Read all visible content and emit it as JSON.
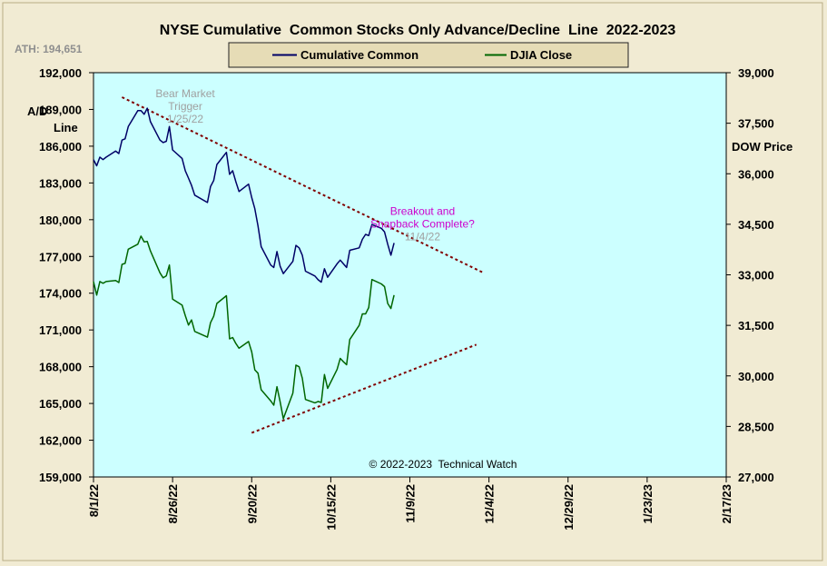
{
  "chart_data": {
    "type": "line",
    "title": "NYSE Cumulative  Common Stocks Only Advance/Decline  Line  2022-2023",
    "ath_label": "ATH: 194,651",
    "left_axis_label_line1": "A/D",
    "left_axis_label_line2": "Line",
    "right_axis_label": "DOW Price",
    "copyright": "© 2022-2023  Technical Watch",
    "colors": {
      "plot_bg": "#ccffff",
      "outer_bg": "#f1ebd3",
      "legend_bg": "#e6dcb6",
      "cumulative": "#000066",
      "djia": "#006600",
      "trendline": "#800000",
      "breakout_text": "#cc00cc",
      "annotation_gray": "#a0a0a0"
    },
    "legend": [
      {
        "name": "Cumulative Common",
        "color": "#000066"
      },
      {
        "name": "DJIA Close",
        "color": "#006600"
      }
    ],
    "y_left": {
      "min": 159000,
      "max": 192000,
      "ticks": [
        159000,
        162000,
        165000,
        168000,
        171000,
        174000,
        177000,
        180000,
        183000,
        186000,
        189000,
        192000
      ],
      "tick_labels": [
        "159,000",
        "162,000",
        "165,000",
        "168,000",
        "171,000",
        "174,000",
        "177,000",
        "180,000",
        "183,000",
        "186,000",
        "189,000",
        "192,000"
      ]
    },
    "y_right": {
      "min": 27000,
      "max": 39000,
      "ticks": [
        27000,
        28500,
        30000,
        31500,
        33000,
        34500,
        36000,
        37500,
        39000
      ],
      "tick_labels": [
        "27,000",
        "28,500",
        "30,000",
        "31,500",
        "33,000",
        "34,500",
        "36,000",
        "37,500",
        "39,000"
      ]
    },
    "x_axis": {
      "start": "2022-08-01",
      "end": "2023-02-17",
      "tick_dates": [
        "2022-08-01",
        "2022-08-26",
        "2022-09-20",
        "2022-10-15",
        "2022-11-09",
        "2022-12-04",
        "2022-12-29",
        "2023-01-23",
        "2023-02-17"
      ],
      "tick_labels": [
        "8/1/22",
        "8/26/22",
        "9/20/22",
        "10/15/22",
        "11/9/22",
        "12/4/22",
        "12/29/22",
        "1/23/23",
        "2/17/23"
      ]
    },
    "annotations": [
      {
        "id": "bear",
        "lines": [
          "Bear Market",
          "Trigger",
          "1/25/22"
        ],
        "anchor_date": "2022-08-30",
        "anchor_value": 190000
      },
      {
        "id": "breakout",
        "lines": [
          "Breakout and",
          "Snapback Complete?",
          "11/4/22"
        ],
        "anchor_date": "2022-11-13",
        "anchor_value": 180400
      }
    ],
    "trendlines": [
      {
        "name": "A/D resistance",
        "start_date": "2022-08-10",
        "start_value": 190000,
        "end_date": "2022-12-02",
        "end_value": 175700
      },
      {
        "name": "DJIA support",
        "start_date": "2022-09-20",
        "start_value": 162600,
        "end_date": "2022-11-30",
        "end_value": 169800
      }
    ],
    "series": [
      {
        "name": "Cumulative Common",
        "axis": "left",
        "color": "#000066",
        "points": [
          [
            "2022-08-01",
            184900
          ],
          [
            "2022-08-02",
            184400
          ],
          [
            "2022-08-03",
            185100
          ],
          [
            "2022-08-04",
            184900
          ],
          [
            "2022-08-05",
            185100
          ],
          [
            "2022-08-08",
            185600
          ],
          [
            "2022-08-09",
            185400
          ],
          [
            "2022-08-10",
            186500
          ],
          [
            "2022-08-11",
            186600
          ],
          [
            "2022-08-12",
            187600
          ],
          [
            "2022-08-15",
            188900
          ],
          [
            "2022-08-16",
            188900
          ],
          [
            "2022-08-17",
            188600
          ],
          [
            "2022-08-18",
            189100
          ],
          [
            "2022-08-19",
            188000
          ],
          [
            "2022-08-22",
            186500
          ],
          [
            "2022-08-23",
            186300
          ],
          [
            "2022-08-24",
            186400
          ],
          [
            "2022-08-25",
            187600
          ],
          [
            "2022-08-26",
            185700
          ],
          [
            "2022-08-29",
            185000
          ],
          [
            "2022-08-30",
            184000
          ],
          [
            "2022-08-31",
            183400
          ],
          [
            "2022-09-01",
            182800
          ],
          [
            "2022-09-02",
            182000
          ],
          [
            "2022-09-06",
            181400
          ],
          [
            "2022-09-07",
            182700
          ],
          [
            "2022-09-08",
            183200
          ],
          [
            "2022-09-09",
            184500
          ],
          [
            "2022-09-12",
            185500
          ],
          [
            "2022-09-13",
            183700
          ],
          [
            "2022-09-14",
            184000
          ],
          [
            "2022-09-15",
            183100
          ],
          [
            "2022-09-16",
            182300
          ],
          [
            "2022-09-19",
            182900
          ],
          [
            "2022-09-20",
            181800
          ],
          [
            "2022-09-21",
            180900
          ],
          [
            "2022-09-22",
            179500
          ],
          [
            "2022-09-23",
            177800
          ],
          [
            "2022-09-26",
            176300
          ],
          [
            "2022-09-27",
            176100
          ],
          [
            "2022-09-28",
            177400
          ],
          [
            "2022-09-29",
            176200
          ],
          [
            "2022-09-30",
            175600
          ],
          [
            "2022-10-03",
            176600
          ],
          [
            "2022-10-04",
            177900
          ],
          [
            "2022-10-05",
            177700
          ],
          [
            "2022-10-06",
            177100
          ],
          [
            "2022-10-07",
            175800
          ],
          [
            "2022-10-10",
            175400
          ],
          [
            "2022-10-11",
            175100
          ],
          [
            "2022-10-12",
            174900
          ],
          [
            "2022-10-13",
            176000
          ],
          [
            "2022-10-14",
            175300
          ],
          [
            "2022-10-17",
            176400
          ],
          [
            "2022-10-18",
            176700
          ],
          [
            "2022-10-19",
            176400
          ],
          [
            "2022-10-20",
            176100
          ],
          [
            "2022-10-21",
            177500
          ],
          [
            "2022-10-24",
            177700
          ],
          [
            "2022-10-25",
            178400
          ],
          [
            "2022-10-26",
            178800
          ],
          [
            "2022-10-27",
            178700
          ],
          [
            "2022-10-28",
            179600
          ],
          [
            "2022-10-31",
            179300
          ],
          [
            "2022-11-01",
            179000
          ],
          [
            "2022-11-02",
            178000
          ],
          [
            "2022-11-03",
            177100
          ],
          [
            "2022-11-04",
            178100
          ]
        ]
      },
      {
        "name": "DJIA Close",
        "axis": "right",
        "color": "#006600",
        "points": [
          [
            "2022-08-01",
            32800
          ],
          [
            "2022-08-02",
            32400
          ],
          [
            "2022-08-03",
            32800
          ],
          [
            "2022-08-04",
            32750
          ],
          [
            "2022-08-05",
            32800
          ],
          [
            "2022-08-08",
            32830
          ],
          [
            "2022-08-09",
            32770
          ],
          [
            "2022-08-10",
            33310
          ],
          [
            "2022-08-11",
            33340
          ],
          [
            "2022-08-12",
            33760
          ],
          [
            "2022-08-15",
            33910
          ],
          [
            "2022-08-16",
            34150
          ],
          [
            "2022-08-17",
            33980
          ],
          [
            "2022-08-18",
            33990
          ],
          [
            "2022-08-19",
            33710
          ],
          [
            "2022-08-22",
            33060
          ],
          [
            "2022-08-23",
            32910
          ],
          [
            "2022-08-24",
            32970
          ],
          [
            "2022-08-25",
            33290
          ],
          [
            "2022-08-26",
            32280
          ],
          [
            "2022-08-29",
            32100
          ],
          [
            "2022-08-30",
            31790
          ],
          [
            "2022-08-31",
            31510
          ],
          [
            "2022-09-01",
            31660
          ],
          [
            "2022-09-02",
            31320
          ],
          [
            "2022-09-06",
            31150
          ],
          [
            "2022-09-07",
            31580
          ],
          [
            "2022-09-08",
            31770
          ],
          [
            "2022-09-09",
            32150
          ],
          [
            "2022-09-12",
            32380
          ],
          [
            "2022-09-13",
            31100
          ],
          [
            "2022-09-14",
            31140
          ],
          [
            "2022-09-15",
            30960
          ],
          [
            "2022-09-16",
            30820
          ],
          [
            "2022-09-19",
            31020
          ],
          [
            "2022-09-20",
            30710
          ],
          [
            "2022-09-21",
            30180
          ],
          [
            "2022-09-22",
            30080
          ],
          [
            "2022-09-23",
            29590
          ],
          [
            "2022-09-26",
            29260
          ],
          [
            "2022-09-27",
            29130
          ],
          [
            "2022-09-28",
            29680
          ],
          [
            "2022-09-29",
            29230
          ],
          [
            "2022-09-30",
            28730
          ],
          [
            "2022-10-03",
            29490
          ],
          [
            "2022-10-04",
            30320
          ],
          [
            "2022-10-05",
            30270
          ],
          [
            "2022-10-06",
            29930
          ],
          [
            "2022-10-07",
            29300
          ],
          [
            "2022-10-10",
            29200
          ],
          [
            "2022-10-11",
            29240
          ],
          [
            "2022-10-12",
            29210
          ],
          [
            "2022-10-13",
            30040
          ],
          [
            "2022-10-14",
            29630
          ],
          [
            "2022-10-17",
            30190
          ],
          [
            "2022-10-18",
            30520
          ],
          [
            "2022-10-19",
            30420
          ],
          [
            "2022-10-20",
            30330
          ],
          [
            "2022-10-21",
            31080
          ],
          [
            "2022-10-24",
            31500
          ],
          [
            "2022-10-25",
            31840
          ],
          [
            "2022-10-26",
            31840
          ],
          [
            "2022-10-27",
            32030
          ],
          [
            "2022-10-28",
            32860
          ],
          [
            "2022-10-31",
            32730
          ],
          [
            "2022-11-01",
            32650
          ],
          [
            "2022-11-02",
            32150
          ],
          [
            "2022-11-03",
            32000
          ],
          [
            "2022-11-04",
            32400
          ]
        ]
      }
    ]
  }
}
